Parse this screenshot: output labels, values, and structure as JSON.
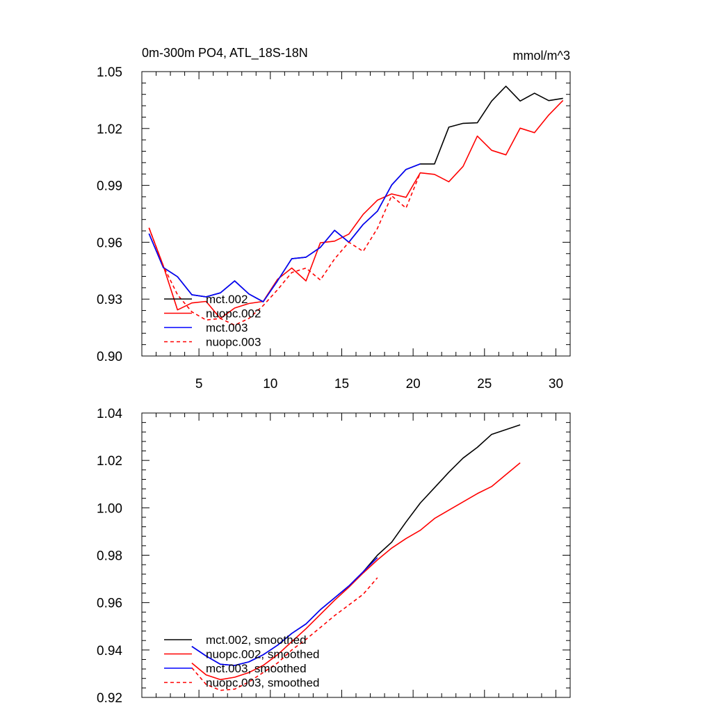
{
  "chart_data": [
    {
      "type": "line",
      "title_left": "0m-300m PO4, ATL_18S-18N",
      "title_right": "mmol/m^3",
      "xlim": [
        1,
        31
      ],
      "ylim": [
        0.9,
        1.05
      ],
      "xticks": [
        5,
        10,
        15,
        20,
        25,
        30
      ],
      "xtick_labels": [
        "5",
        "10",
        "15",
        "20",
        "25",
        "30"
      ],
      "yticks": [
        0.9,
        0.93,
        0.96,
        0.99,
        1.02,
        1.05
      ],
      "ytick_labels": [
        "0.90",
        "0.93",
        "0.96",
        "0.99",
        "1.02",
        "1.05"
      ],
      "legend_position": "bottom-left",
      "series": [
        {
          "name": "mct.002",
          "color": "#000000",
          "dash": "solid",
          "x": [
            1.5,
            2.5,
            3.5,
            4.5,
            5.5,
            6.5,
            7.5,
            8.5,
            9.5,
            10.5,
            11.5,
            12.5,
            13.5,
            14.5,
            15.5,
            16.5,
            17.5,
            18.5,
            19.5,
            20.5,
            21.5,
            22.5,
            23.5,
            24.5,
            25.5,
            26.5,
            27.5,
            28.5,
            29.5,
            30.5
          ],
          "y": [
            0.9645,
            0.9467,
            0.9418,
            0.9323,
            0.9312,
            0.9333,
            0.9396,
            0.9327,
            0.9286,
            0.9396,
            0.9513,
            0.9521,
            0.9573,
            0.9663,
            0.96,
            0.9694,
            0.9764,
            0.9902,
            0.9984,
            1.0013,
            1.0013,
            1.0207,
            1.0227,
            1.023,
            1.0345,
            1.0423,
            1.0345,
            1.0386,
            1.0347,
            1.0359
          ]
        },
        {
          "name": "nuopc.002",
          "color": "#ff0000",
          "dash": "solid",
          "x": [
            1.5,
            2.5,
            3.5,
            4.5,
            5.5,
            6.5,
            7.5,
            8.5,
            9.5,
            10.5,
            11.5,
            12.5,
            13.5,
            14.5,
            15.5,
            16.5,
            17.5,
            18.5,
            19.5,
            20.5,
            21.5,
            22.5,
            23.5,
            24.5,
            25.5,
            26.5,
            27.5,
            28.5,
            29.5,
            30.5
          ],
          "y": [
            0.9676,
            0.9476,
            0.9243,
            0.928,
            0.9288,
            0.9198,
            0.9253,
            0.9277,
            0.9288,
            0.9404,
            0.9464,
            0.9396,
            0.9597,
            0.9606,
            0.9643,
            0.9747,
            0.9822,
            0.9855,
            0.9837,
            0.9966,
            0.9958,
            0.9919,
            1.0,
            1.016,
            1.0085,
            1.0061,
            1.0202,
            1.0178,
            1.0271,
            1.0348
          ]
        },
        {
          "name": "mct.003",
          "color": "#0000ff",
          "dash": "solid",
          "x": [
            1.5,
            2.5,
            3.5,
            4.5,
            5.5,
            6.5,
            7.5,
            8.5,
            9.5,
            10.5,
            11.5,
            12.5,
            13.5,
            14.5,
            15.5,
            16.5,
            17.5,
            18.5,
            19.5,
            20.5
          ],
          "y": [
            0.9645,
            0.9467,
            0.9418,
            0.9323,
            0.9312,
            0.9333,
            0.9396,
            0.9327,
            0.9286,
            0.9396,
            0.9513,
            0.9521,
            0.9573,
            0.9663,
            0.96,
            0.9694,
            0.9764,
            0.9902,
            0.9984,
            1.0013
          ]
        },
        {
          "name": "nuopc.003",
          "color": "#ff0000",
          "dash": "dashed",
          "x": [
            1.5,
            2.5,
            3.5,
            4.5,
            5.5,
            6.5,
            7.5,
            8.5,
            9.5,
            10.5,
            11.5,
            12.5,
            13.5,
            14.5,
            15.5,
            16.5,
            17.5,
            18.5,
            19.5,
            20.5
          ],
          "y": [
            0.9676,
            0.9476,
            0.9323,
            0.9233,
            0.919,
            0.9198,
            0.9163,
            0.9198,
            0.9266,
            0.9349,
            0.944,
            0.9464,
            0.9401,
            0.9512,
            0.96,
            0.9552,
            0.9673,
            0.9845,
            0.978,
            0.9966
          ]
        }
      ]
    },
    {
      "type": "line",
      "xlim": [
        1,
        31
      ],
      "ylim": [
        0.92,
        1.04
      ],
      "xticks": [
        5,
        10,
        15,
        20,
        25,
        30
      ],
      "yticks": [
        0.92,
        0.94,
        0.96,
        0.98,
        1.0,
        1.02,
        1.04
      ],
      "ytick_labels": [
        "0.92",
        "0.94",
        "0.96",
        "0.98",
        "1.00",
        "1.02",
        "1.04"
      ],
      "legend_position": "bottom-left",
      "series": [
        {
          "name": "mct.002, smoothed",
          "color": "#000000",
          "dash": "solid",
          "x": [
            4.5,
            5.5,
            6.5,
            7.5,
            8.5,
            9.5,
            10.5,
            11.5,
            12.5,
            13.5,
            14.5,
            15.5,
            16.5,
            17.5,
            18.5,
            19.5,
            20.5,
            21.5,
            22.5,
            23.5,
            24.5,
            25.5,
            26.5,
            27.5
          ],
          "y": [
            0.9415,
            0.9375,
            0.934,
            0.9335,
            0.935,
            0.938,
            0.942,
            0.947,
            0.951,
            0.957,
            0.962,
            0.967,
            0.973,
            0.98,
            0.9855,
            0.994,
            1.002,
            1.0085,
            1.015,
            1.021,
            1.0255,
            1.031,
            1.033,
            1.035
          ]
        },
        {
          "name": "nuopc.002, smoothed",
          "color": "#ff0000",
          "dash": "solid",
          "x": [
            4.5,
            5.5,
            6.5,
            7.5,
            8.5,
            9.5,
            10.5,
            11.5,
            12.5,
            13.5,
            14.5,
            15.5,
            16.5,
            17.5,
            18.5,
            19.5,
            20.5,
            21.5,
            22.5,
            23.5,
            24.5,
            25.5,
            26.5,
            27.5
          ],
          "y": [
            0.9345,
            0.9295,
            0.9275,
            0.9285,
            0.9305,
            0.9335,
            0.938,
            0.9435,
            0.949,
            0.955,
            0.961,
            0.9665,
            0.9725,
            0.978,
            0.983,
            0.987,
            0.9905,
            0.9955,
            0.999,
            1.0025,
            1.006,
            1.009,
            1.014,
            1.019
          ]
        },
        {
          "name": "mct.003, smoothed",
          "color": "#0000ff",
          "dash": "solid",
          "x": [
            4.5,
            5.5,
            6.5,
            7.5,
            8.5,
            9.5,
            10.5,
            11.5,
            12.5,
            13.5,
            14.5,
            15.5,
            16.5,
            17.5
          ],
          "y": [
            0.9415,
            0.9375,
            0.934,
            0.9335,
            0.935,
            0.938,
            0.942,
            0.947,
            0.951,
            0.957,
            0.962,
            0.967,
            0.973,
            0.979
          ]
        },
        {
          "name": "nuopc.003, smoothed",
          "color": "#ff0000",
          "dash": "dashed",
          "x": [
            4.5,
            5.5,
            6.5,
            7.5,
            8.5,
            9.5,
            10.5,
            11.5,
            12.5,
            13.5,
            14.5,
            15.5,
            16.5,
            17.5
          ],
          "y": [
            0.9325,
            0.9255,
            0.923,
            0.9235,
            0.9265,
            0.9305,
            0.9345,
            0.94,
            0.9445,
            0.9495,
            0.9545,
            0.959,
            0.9635,
            0.9705
          ]
        }
      ]
    }
  ]
}
